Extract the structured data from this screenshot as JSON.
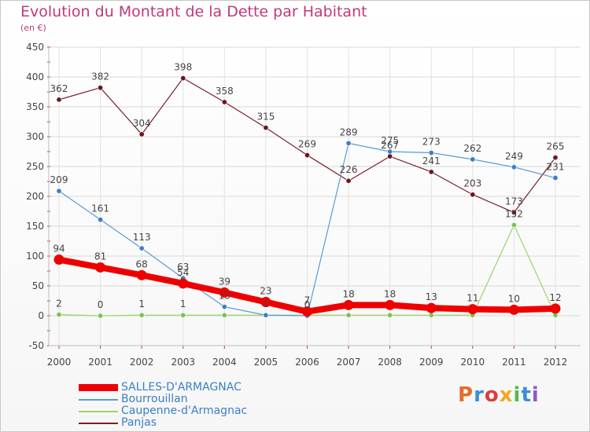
{
  "header": {
    "title": "Evolution du Montant de la Dette par Habitant",
    "unit": "(en €)"
  },
  "logo": {
    "text": "Proxiti",
    "colors": [
      "#e86b2c",
      "#3a8fd6",
      "#e23a3a",
      "#f2a81d",
      "#57b848",
      "#3a8fd6",
      "#8b5cc7"
    ]
  },
  "chart_data": {
    "type": "line",
    "x": [
      "2000",
      "2001",
      "2002",
      "2003",
      "2004",
      "2005",
      "2006",
      "2007",
      "2008",
      "2009",
      "2010",
      "2011",
      "2012"
    ],
    "ylim": [
      -50,
      450
    ],
    "yticks": [
      -50,
      0,
      50,
      100,
      150,
      200,
      250,
      300,
      350,
      400,
      450
    ],
    "grid": true,
    "legend_position": "bottom-left",
    "series": [
      {
        "name": "SALLES-D'ARMAGNAC",
        "color": "#ee0000",
        "values": [
          94,
          81,
          68,
          54,
          39,
          23,
          7,
          18,
          18,
          13,
          11,
          10,
          12
        ],
        "labels": [
          "94",
          "81",
          "68",
          "54",
          "39",
          "23",
          "7",
          "18",
          "18",
          "13",
          "11",
          "10",
          "12"
        ]
      },
      {
        "name": "Bourrouillan",
        "color": "#5b9bd5",
        "values": [
          209,
          161,
          113,
          63,
          15,
          1,
          0,
          289,
          275,
          273,
          262,
          249,
          231
        ],
        "labels": [
          "209",
          "161",
          "113",
          "63",
          "15",
          "1",
          "0",
          "289",
          "275",
          "273",
          "262",
          "249",
          "231"
        ]
      },
      {
        "name": "Caupenne-d'Armagnac",
        "color": "#9ad46a",
        "values": [
          2,
          0,
          1,
          1,
          1,
          1,
          1,
          1,
          1,
          1,
          1,
          152,
          1
        ],
        "labels": [
          "2",
          "0",
          "1",
          "1",
          "",
          "",
          "",
          "",
          "",
          "",
          "",
          "152",
          ""
        ]
      },
      {
        "name": "Panjas",
        "color": "#7a1e2a",
        "values": [
          362,
          382,
          304,
          398,
          358,
          315,
          269,
          226,
          267,
          241,
          203,
          173,
          265
        ],
        "labels": [
          "362",
          "382",
          "304",
          "398",
          "358",
          "315",
          "269",
          "226",
          "267",
          "241",
          "203",
          "173",
          "265"
        ]
      }
    ]
  }
}
